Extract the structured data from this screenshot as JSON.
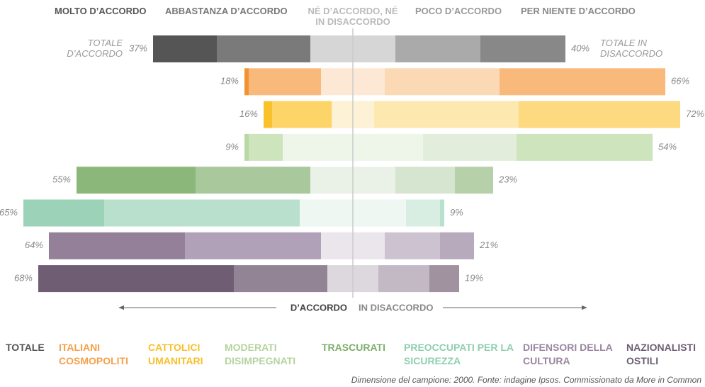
{
  "chart_data": {
    "type": "diverging_stacked_bar",
    "categories": [
      "TOTALE",
      "ITALIANI COSMOPOLITI",
      "CATTOLICI UMANITARI",
      "MODERATI DISIMPEGNATI",
      "TRASCURATI",
      "PREOCCUPATI PER LA SICUREZZA",
      "DIFENSORI DELLA CULTURA",
      "NAZIONALISTI OSTILI"
    ],
    "category_colors": [
      "#555555",
      "#f5a04a",
      "#f7bf2a",
      "#b5d39f",
      "#7fae6c",
      "#8fcfb0",
      "#9a86a0",
      "#6e5d73"
    ],
    "series": [
      {
        "name": "MOLTO D’ACCORDO",
        "side": "agree",
        "values": [
          15,
          1,
          2,
          1,
          28,
          19,
          32,
          46
        ],
        "colors": [
          "#555555",
          "#f29233",
          "#f9c22c",
          "#b8d9a4",
          "#8bb87a",
          "#9bd2b8",
          "#948099",
          "#6e5d73"
        ]
      },
      {
        "name": "ABBASTANZA D’ACCORDO",
        "side": "agree",
        "values": [
          22,
          17,
          14,
          8,
          27,
          46,
          32,
          22
        ],
        "colors": [
          "#7a7a7a",
          "#f8b97a",
          "#fdd467",
          "#cde4bd",
          "#a9c99c",
          "#b8e0cc",
          "#b0a0b8",
          "#928395"
        ]
      },
      {
        "name": "NÉ D’ACCORDO, NÉ IN DISACCORDO",
        "side": "neutral",
        "values": [
          20,
          15,
          10,
          33,
          20,
          25,
          15,
          12
        ],
        "colors": [
          "#d6d6d6",
          "#fde8d6",
          "#fdf1d6",
          "#eef5e9",
          "#eaf1e6",
          "#eef7f2",
          "#ebe6ec",
          "#ddd7de"
        ]
      },
      {
        "name": "POCO D’ACCORDO",
        "side": "disagree",
        "values": [
          20,
          27,
          34,
          22,
          14,
          8,
          13,
          12
        ],
        "colors": [
          "#aaaaaa",
          "#fbd9b5",
          "#fde8b0",
          "#e2eedb",
          "#d6e5cf",
          "#d9eee3",
          "#cdc3d0",
          "#c2b9c4"
        ]
      },
      {
        "name": "PER NIENTE D’ACCORDO",
        "side": "disagree",
        "values": [
          20,
          39,
          38,
          32,
          9,
          1,
          8,
          7
        ],
        "colors": [
          "#888888",
          "#f8b97a",
          "#fdd980",
          "#cde4bd",
          "#b6d0aa",
          "#b8e0cc",
          "#b8aabd",
          "#a0939f"
        ]
      }
    ],
    "agree_totals": {
      "values": [
        37,
        18,
        16,
        9,
        55,
        65,
        64,
        68
      ],
      "value_labels": [
        "37%",
        "18%",
        "16%",
        "9%",
        "55%",
        "65%",
        "64%",
        "68%"
      ]
    },
    "disagree_totals": {
      "values": [
        40,
        66,
        72,
        54,
        23,
        9,
        21,
        19
      ],
      "value_labels": [
        "40%",
        "66%",
        "72%",
        "54%",
        "23%",
        "9%",
        "21%",
        "19%"
      ]
    },
    "agree_total_annotation": "TOTALE D’ACCORDO",
    "disagree_total_annotation": "TOTALE IN DISACCORDO",
    "axis_left_label": "D’ACCORDO",
    "axis_right_label": "IN DISACCORDO",
    "note": "Dimensione del campione: 2000. Fonte: indagine Ipsos. Commissionato da More in Common"
  }
}
